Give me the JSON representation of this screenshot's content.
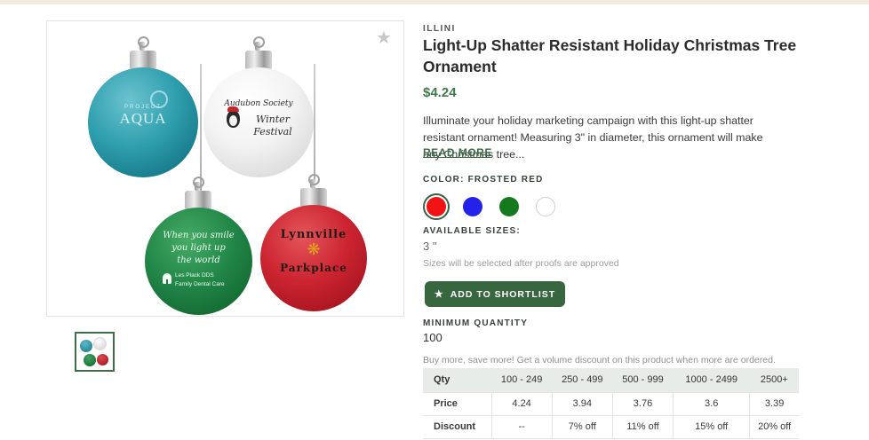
{
  "page": {
    "accent_green": "#38663f",
    "top_bar_color": "#f2ebe1"
  },
  "gallery": {
    "star_icon": "★",
    "ornaments": {
      "teal": {
        "line1": "PROJECT",
        "line2": "AQUA"
      },
      "white": {
        "line1": "Audubon Society",
        "line2": "Winter",
        "line3": "Festival"
      },
      "green": {
        "line1": "When you smile",
        "line2": "you light up",
        "line3": "the world",
        "line4": "Les Plack DDS",
        "line5": "Family Dental Care"
      },
      "red": {
        "line1": "Lynnville",
        "flourish": "❋",
        "line2": "Parkplace"
      }
    }
  },
  "product": {
    "brand": "ILLINI",
    "title": "Light-Up Shatter Resistant Holiday Christmas Tree Ornament",
    "price": "$4.24",
    "description": "Illuminate your holiday marketing campaign with this light-up shatter resistant ornament! Measuring 3\" in diameter, this ornament will make any Christmas tree...",
    "read_more": "READ MORE",
    "color_label": "COLOR: FROSTED RED",
    "swatches": [
      {
        "name": "Frosted Red",
        "color": "#f21414",
        "selected": true
      },
      {
        "name": "Blue",
        "color": "#2222ea",
        "selected": false
      },
      {
        "name": "Green",
        "color": "#157a1e",
        "selected": false
      },
      {
        "name": "White",
        "color": "#ffffff",
        "selected": false
      }
    ],
    "sizes_label": "AVAILABLE SIZES:",
    "size_value": "3 \"",
    "size_note": "Sizes will be selected after proofs are approved",
    "shortlist_button": "ADD TO SHORTLIST",
    "button_star": "★",
    "min_qty_label": "MINIMUM QUANTITY",
    "min_qty_value": "100",
    "volume_note": "Buy more, save more! Get a volume discount on this product when more are ordered."
  },
  "pricing_table": {
    "headers": [
      "Qty",
      "100 - 249",
      "250 - 499",
      "500 - 999",
      "1000 - 2499",
      "2500+"
    ],
    "rows": [
      {
        "label": "Price",
        "values": [
          "4.24",
          "3.94",
          "3.76",
          "3.6",
          "3.39"
        ]
      },
      {
        "label": "Discount",
        "values": [
          "--",
          "7% off",
          "11% off",
          "15% off",
          "20% off"
        ]
      }
    ]
  }
}
